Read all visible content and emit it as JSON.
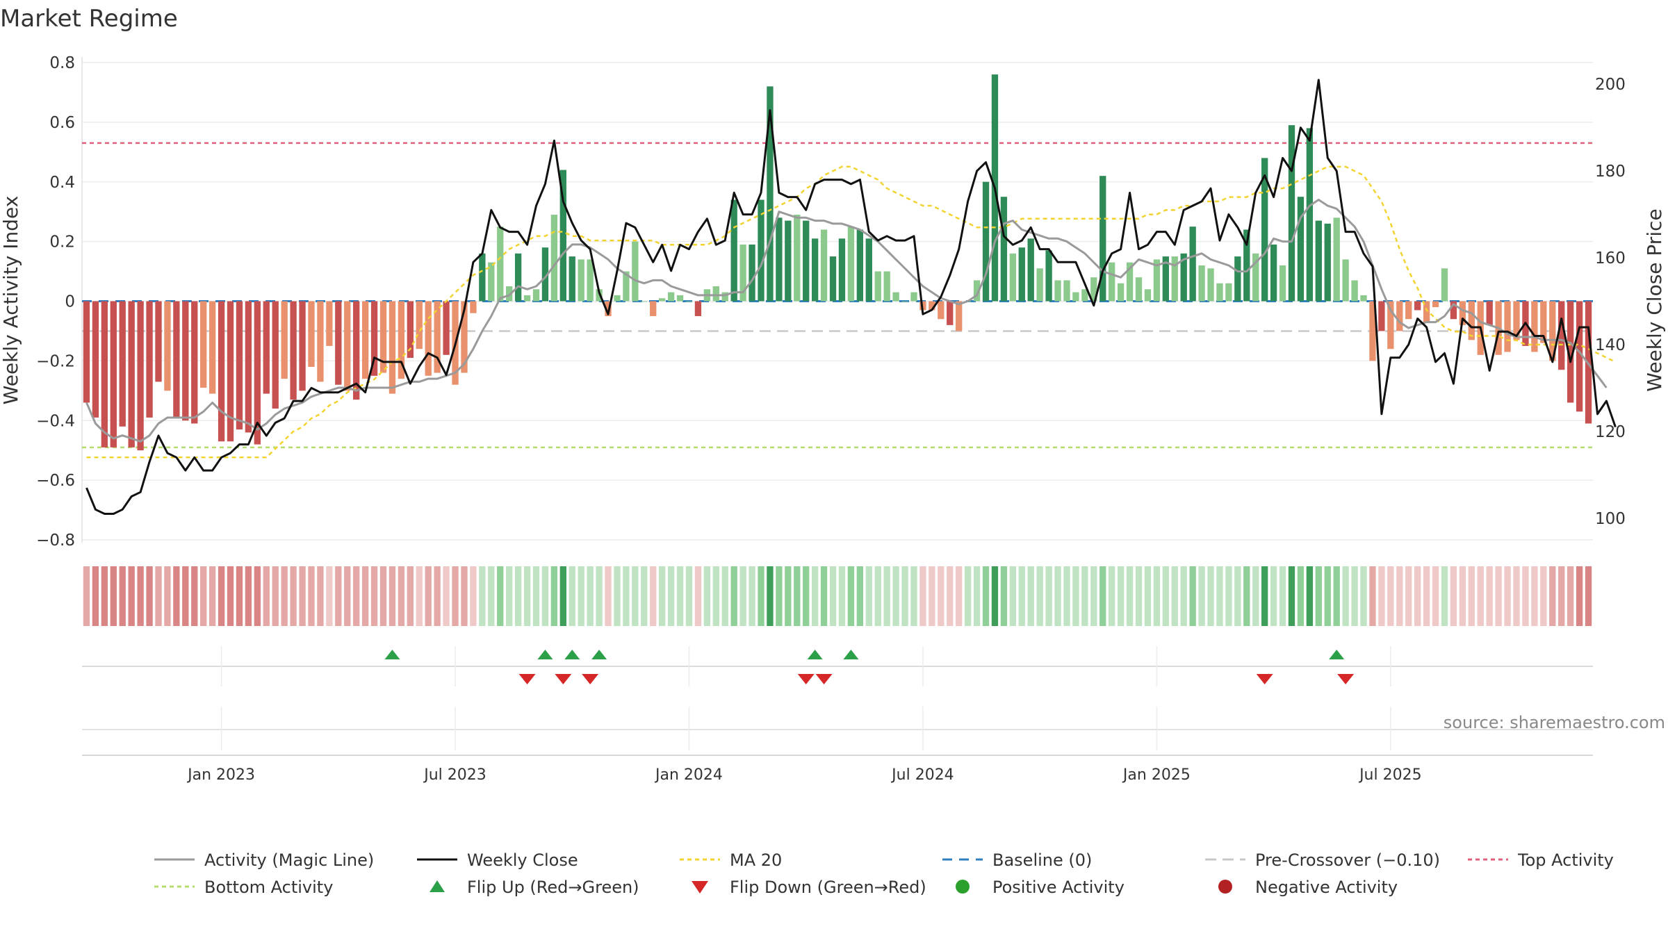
{
  "chart_data": {
    "type": "bar",
    "title": "Market Regime",
    "ylabel_left": "Weekly Activity Index",
    "ylabel_right": "Weekly Close Price",
    "ylim_left": [
      -0.8,
      0.8
    ],
    "ylim_right": [
      95,
      205
    ],
    "yticks_left": [
      {
        "value": 0.8,
        "label": "0.8"
      },
      {
        "value": 0.6,
        "label": "0.6"
      },
      {
        "value": 0.4,
        "label": "0.4"
      },
      {
        "value": 0.2,
        "label": "0.2"
      },
      {
        "value": 0,
        "label": "0"
      },
      {
        "value": -0.2,
        "label": "−0.2"
      },
      {
        "value": -0.4,
        "label": "−0.4"
      },
      {
        "value": -0.6,
        "label": "−0.6"
      },
      {
        "value": -0.8,
        "label": "−0.8"
      }
    ],
    "yticks_right": [
      {
        "value": 200,
        "label": "200"
      },
      {
        "value": 180,
        "label": "180"
      },
      {
        "value": 160,
        "label": "160"
      },
      {
        "value": 140,
        "label": "140"
      },
      {
        "value": 120,
        "label": "120"
      },
      {
        "value": 100,
        "label": "100"
      }
    ],
    "xticks": [
      {
        "week": 15,
        "label": "Jan 2023"
      },
      {
        "week": 41,
        "label": "Jul 2023"
      },
      {
        "week": 67,
        "label": "Jan 2024"
      },
      {
        "week": 93,
        "label": "Jul 2024"
      },
      {
        "week": 119,
        "label": "Jan 2025"
      },
      {
        "week": 145,
        "label": "Jul 2025"
      }
    ],
    "reference_lines": {
      "top_activity": 0.53,
      "bottom_activity": -0.49,
      "pre_crossover": -0.1,
      "baseline": 0
    },
    "activity": [
      -0.34,
      -0.39,
      -0.49,
      -0.49,
      -0.42,
      -0.49,
      -0.5,
      -0.39,
      -0.27,
      -0.3,
      -0.39,
      -0.4,
      -0.41,
      -0.29,
      -0.31,
      -0.47,
      -0.47,
      -0.43,
      -0.44,
      -0.48,
      -0.31,
      -0.36,
      -0.26,
      -0.33,
      -0.3,
      -0.22,
      -0.27,
      -0.15,
      -0.28,
      -0.3,
      -0.33,
      -0.26,
      -0.25,
      -0.24,
      -0.31,
      -0.26,
      -0.19,
      -0.16,
      -0.25,
      -0.24,
      -0.18,
      -0.28,
      -0.24,
      -0.04,
      0.16,
      0.13,
      0.25,
      0.05,
      0.16,
      0.02,
      0.04,
      0.18,
      0.29,
      0.44,
      0.15,
      0.14,
      0.14,
      0.04,
      -0.05,
      0.02,
      0.1,
      0.2,
      0.0,
      -0.05,
      0.01,
      0.03,
      0.02,
      0.0,
      -0.05,
      0.04,
      0.05,
      0.03,
      0.34,
      0.19,
      0.19,
      0.34,
      0.72,
      0.28,
      0.27,
      0.29,
      0.27,
      0.21,
      0.24,
      0.15,
      0.21,
      0.25,
      0.24,
      0.21,
      0.1,
      0.1,
      0.03,
      0.0,
      0.03,
      -0.03,
      -0.03,
      -0.06,
      -0.08,
      -0.1,
      0.0,
      0.07,
      0.4,
      0.76,
      0.35,
      0.16,
      0.18,
      0.21,
      0.11,
      0.17,
      0.07,
      0.07,
      0.03,
      0.04,
      0.08,
      0.42,
      0.13,
      0.06,
      0.13,
      0.08,
      0.04,
      0.14,
      0.15,
      0.15,
      0.16,
      0.25,
      0.12,
      0.11,
      0.06,
      0.06,
      0.15,
      0.24,
      0.16,
      0.48,
      0.19,
      0.12,
      0.59,
      0.35,
      0.58,
      0.27,
      0.26,
      0.28,
      0.14,
      0.07,
      0.02,
      -0.2,
      -0.1,
      -0.16,
      -0.1,
      -0.06,
      -0.03,
      -0.07,
      -0.02,
      0.11,
      -0.06,
      -0.08,
      -0.13,
      -0.18,
      -0.08,
      -0.18,
      -0.17,
      -0.13,
      -0.15,
      -0.17,
      -0.14,
      -0.2,
      -0.23,
      -0.34,
      -0.37,
      -0.41
    ],
    "magic_line": [
      -0.34,
      -0.41,
      -0.44,
      -0.46,
      -0.45,
      -0.46,
      -0.47,
      -0.45,
      -0.41,
      -0.39,
      -0.39,
      -0.39,
      -0.39,
      -0.37,
      -0.34,
      -0.37,
      -0.39,
      -0.4,
      -0.41,
      -0.43,
      -0.41,
      -0.38,
      -0.36,
      -0.35,
      -0.34,
      -0.32,
      -0.31,
      -0.3,
      -0.29,
      -0.29,
      -0.3,
      -0.29,
      -0.29,
      -0.29,
      -0.29,
      -0.28,
      -0.27,
      -0.27,
      -0.26,
      -0.26,
      -0.25,
      -0.24,
      -0.21,
      -0.16,
      -0.1,
      -0.05,
      0.01,
      0.02,
      0.05,
      0.04,
      0.05,
      0.08,
      0.12,
      0.16,
      0.19,
      0.19,
      0.18,
      0.16,
      0.14,
      0.11,
      0.09,
      0.07,
      0.06,
      0.07,
      0.07,
      0.05,
      0.04,
      0.03,
      0.02,
      0.02,
      0.02,
      0.02,
      0.03,
      0.03,
      0.07,
      0.12,
      0.2,
      0.3,
      0.29,
      0.28,
      0.28,
      0.27,
      0.27,
      0.26,
      0.26,
      0.25,
      0.24,
      0.22,
      0.2,
      0.17,
      0.14,
      0.11,
      0.08,
      0.05,
      0.03,
      0.01,
      0.0,
      -0.01,
      0.0,
      0.02,
      0.09,
      0.2,
      0.26,
      0.27,
      0.24,
      0.23,
      0.22,
      0.21,
      0.21,
      0.2,
      0.18,
      0.16,
      0.13,
      0.1,
      0.09,
      0.08,
      0.11,
      0.14,
      0.13,
      0.12,
      0.13,
      0.12,
      0.14,
      0.15,
      0.16,
      0.14,
      0.13,
      0.12,
      0.1,
      0.1,
      0.13,
      0.16,
      0.21,
      0.2,
      0.2,
      0.28,
      0.32,
      0.34,
      0.32,
      0.31,
      0.28,
      0.25,
      0.2,
      0.12,
      0.04,
      -0.03,
      -0.07,
      -0.09,
      -0.08,
      -0.07,
      -0.07,
      -0.05,
      -0.01,
      -0.03,
      -0.04,
      -0.07,
      -0.08,
      -0.09,
      -0.11,
      -0.12,
      -0.12,
      -0.12,
      -0.13,
      -0.13,
      -0.13,
      -0.14,
      -0.17,
      -0.21,
      -0.25,
      -0.29
    ],
    "weekly_close": [
      107,
      102,
      101,
      101,
      102,
      105,
      106,
      113,
      119,
      115,
      114,
      111,
      114,
      111,
      111,
      114,
      115,
      117,
      117,
      122,
      119,
      122,
      123,
      127,
      127,
      130,
      129,
      129,
      129,
      130,
      131,
      129,
      137,
      136,
      136,
      136,
      131,
      135,
      138,
      137,
      133,
      140,
      148,
      159,
      161,
      171,
      167,
      166,
      166,
      163,
      172,
      177,
      187,
      173,
      168,
      164,
      162,
      152,
      147,
      157,
      168,
      167,
      163,
      159,
      163,
      157,
      163,
      162,
      166,
      169,
      163,
      164,
      175,
      170,
      170,
      175,
      194,
      175,
      174,
      174,
      171,
      177,
      178,
      178,
      178,
      177,
      178,
      166,
      164,
      165,
      164,
      164,
      165,
      147,
      148,
      151,
      156,
      162,
      173,
      180,
      182,
      176,
      165,
      163,
      164,
      167,
      162,
      162,
      159,
      159,
      159,
      154,
      149,
      157,
      161,
      162,
      175,
      162,
      163,
      166,
      166,
      163,
      171,
      172,
      173,
      176,
      164,
      170,
      167,
      163,
      175,
      179,
      174,
      183,
      180,
      190,
      187,
      201,
      183,
      180,
      166,
      166,
      161,
      158,
      124,
      137,
      137,
      140,
      146,
      144,
      136,
      138,
      131,
      146,
      144,
      144,
      134,
      143,
      143,
      142,
      145,
      142,
      142,
      136,
      146,
      136,
      144,
      144,
      124,
      127,
      121
    ],
    "ma20": [
      114,
      114,
      114,
      114,
      114,
      114,
      114,
      114,
      114,
      114,
      114,
      114,
      114,
      114,
      114,
      114,
      114,
      114,
      114,
      114,
      114,
      116,
      118,
      120,
      121,
      123,
      124,
      126,
      127,
      129,
      130,
      131,
      132,
      134,
      136,
      137,
      139,
      143,
      146,
      148,
      150,
      152,
      154,
      156,
      157,
      158,
      160,
      162,
      163,
      164,
      165,
      165,
      166,
      166,
      165,
      165,
      164,
      164,
      164,
      164,
      164,
      164,
      164,
      164,
      163,
      163,
      163,
      163,
      163,
      163,
      164,
      165,
      167,
      168,
      169,
      170,
      171,
      172,
      173,
      174,
      176,
      177,
      179,
      180,
      181,
      181,
      180,
      179,
      178,
      176,
      175,
      174,
      173,
      172,
      172,
      171,
      170,
      169,
      168,
      167,
      167,
      167,
      167,
      168,
      169,
      169,
      169,
      169,
      169,
      169,
      169,
      169,
      169,
      169,
      169,
      169,
      169,
      169,
      170,
      170,
      171,
      171,
      172,
      172,
      173,
      173,
      173,
      174,
      174,
      174,
      175,
      175,
      176,
      176,
      177,
      178,
      179,
      180,
      181,
      181,
      181,
      180,
      179,
      176,
      173,
      168,
      162,
      157,
      153,
      148,
      146,
      144,
      143,
      143,
      142,
      142,
      142,
      142,
      141,
      141,
      140,
      140,
      140,
      140,
      140,
      140,
      140,
      139,
      138,
      137,
      136
    ],
    "flip_up_weeks": [
      34,
      51,
      54,
      57,
      81,
      85,
      139
    ],
    "flip_down_weeks": [
      49,
      53,
      56,
      80,
      82,
      131,
      140
    ],
    "legend": [
      "Activity (Magic Line)",
      "Weekly Close",
      "MA 20",
      "Baseline (0)",
      "Pre-Crossover (−0.10)",
      "Top Activity",
      "Bottom Activity",
      "Flip Up (Red→Green)",
      "Flip Down (Green→Red)",
      "Positive Activity",
      "Negative Activity"
    ],
    "colors": {
      "strong_green": "#2e8b57",
      "light_green": "#8cc98c",
      "strong_red": "#c75050",
      "light_red": "#e8916c",
      "magic_line": "#9a9a9a",
      "close_line": "#111111",
      "ma20": "#f2d330",
      "baseline": "#2f7fbf",
      "pre_crossover": "#c8c8c8",
      "top_activity": "#e0607e",
      "bottom_activity": "#b6dc6f",
      "flip_up": "#2ca048",
      "flip_down": "#d62728",
      "positive_marker": "#2ca02c",
      "negative_marker": "#b22222"
    }
  },
  "footer": {
    "source": "source: sharemaestro.com"
  }
}
